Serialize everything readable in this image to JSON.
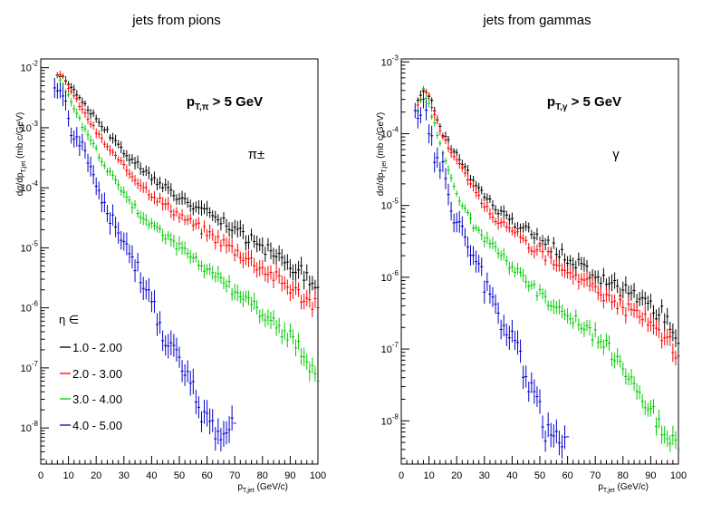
{
  "chart_data": [
    {
      "type": "scatter",
      "title": "jets from pions",
      "annotation": "p_T,π > 5 GeV",
      "particle_label": "π±",
      "xlabel": "p_T,jet (GeV/c)",
      "ylabel": "dσ/dp_T,jet (mb c/GeV)",
      "xlim": [
        0,
        100
      ],
      "ylim": [
        2.5e-09,
        0.014
      ],
      "yscale": "log",
      "x_ticks": [
        "0",
        "10",
        "20",
        "30",
        "40",
        "50",
        "60",
        "70",
        "80",
        "90",
        "100"
      ],
      "y_ticks": [
        {
          "base": "10",
          "exp": "-2",
          "value": 0.01
        },
        {
          "base": "10",
          "exp": "-3",
          "value": 0.001
        },
        {
          "base": "10",
          "exp": "-4",
          "value": 0.0001
        },
        {
          "base": "10",
          "exp": "-5",
          "value": 1e-05
        },
        {
          "base": "10",
          "exp": "-6",
          "value": 1e-06
        },
        {
          "base": "10",
          "exp": "-7",
          "value": 1e-07
        },
        {
          "base": "10",
          "exp": "-8",
          "value": 1e-08
        }
      ],
      "legend": {
        "header": "η ∈",
        "placement": "bottom-left",
        "entries": [
          "1.0 - 2.00",
          "2.0 - 3.00",
          "3.0 - 4.00",
          "4.0 - 5.00"
        ]
      },
      "series": [
        {
          "color": "#000000",
          "x": [
            6,
            8,
            10,
            15,
            20,
            25,
            30,
            35,
            40,
            45,
            50,
            55,
            60,
            65,
            70,
            75,
            80,
            85,
            90,
            95,
            100
          ],
          "y": [
            0.0075,
            0.0072,
            0.0055,
            0.0028,
            0.0014,
            0.00075,
            0.0004,
            0.00024,
            0.00015,
            0.0001,
            7e-05,
            5e-05,
            3.7e-05,
            2.7e-05,
            2e-05,
            1.4e-05,
            1e-05,
            7.2e-06,
            5.2e-06,
            3.8e-06,
            2.2e-06
          ]
        },
        {
          "color": "#ff0000",
          "x": [
            6,
            8,
            10,
            15,
            20,
            25,
            30,
            35,
            40,
            45,
            50,
            55,
            60,
            65,
            70,
            75,
            80,
            85,
            90,
            95,
            100
          ],
          "y": [
            0.0075,
            0.007,
            0.0048,
            0.002,
            0.00085,
            0.00042,
            0.00022,
            0.00013,
            8e-05,
            5.2e-05,
            3.6e-05,
            2.5e-05,
            1.8e-05,
            1.3e-05,
            9.2e-06,
            6.6e-06,
            4.6e-06,
            3.2e-06,
            2.2e-06,
            1.5e-06,
            1e-06
          ]
        },
        {
          "color": "#00cc00",
          "x": [
            6,
            8,
            10,
            15,
            20,
            25,
            30,
            35,
            40,
            45,
            50,
            55,
            60,
            65,
            70,
            75,
            80,
            85,
            90,
            95,
            100
          ],
          "y": [
            0.007,
            0.0055,
            0.0033,
            0.0011,
            0.00042,
            0.00017,
            8e-05,
            4e-05,
            2.3e-05,
            1.5e-05,
            1e-05,
            6.8e-06,
            4.5e-06,
            2.8e-06,
            1.9e-06,
            1.3e-06,
            8e-07,
            5e-07,
            3.2e-07,
            1.6e-07,
            6e-08
          ]
        },
        {
          "color": "#0000cc",
          "x": [
            5,
            8,
            10,
            12,
            15,
            17,
            20,
            22,
            25,
            27,
            30,
            32,
            35,
            37,
            40,
            42,
            45,
            47,
            50,
            52,
            55,
            57,
            60,
            62,
            65,
            70
          ],
          "y": [
            0.006,
            0.0035,
            0.0013,
            0.00075,
            0.00045,
            0.00022,
            0.00012,
            6.5e-05,
            3.3e-05,
            2e-05,
            1.1e-05,
            6.5e-06,
            3.8e-06,
            2.2e-06,
            1.4e-06,
            7e-07,
            3.5e-07,
            2.5e-07,
            1.2e-07,
            7e-08,
            4e-08,
            2e-08,
            1.5e-08,
            1e-08,
            8e-09,
            1.2e-08
          ]
        }
      ]
    },
    {
      "type": "scatter",
      "title": "jets from gammas",
      "annotation": "p_T,γ > 5 GeV",
      "particle_label": "γ",
      "xlabel": "p_T,jet (GeV/c)",
      "ylabel": "dσ/dp_T,jet (mb c/GeV)",
      "xlim": [
        0,
        100
      ],
      "ylim": [
        2.5e-09,
        0.0011
      ],
      "yscale": "log",
      "x_ticks": [
        "0",
        "10",
        "20",
        "30",
        "40",
        "50",
        "60",
        "70",
        "80",
        "90",
        "100"
      ],
      "y_ticks": [
        {
          "base": "10",
          "exp": "-3",
          "value": 0.001
        },
        {
          "base": "10",
          "exp": "-4",
          "value": 0.0001
        },
        {
          "base": "10",
          "exp": "-5",
          "value": 1e-05
        },
        {
          "base": "10",
          "exp": "-6",
          "value": 1e-06
        },
        {
          "base": "10",
          "exp": "-7",
          "value": 1e-07
        },
        {
          "base": "10",
          "exp": "-8",
          "value": 1e-08
        }
      ],
      "series": [
        {
          "color": "#000000",
          "x": [
            6,
            8,
            10,
            15,
            20,
            25,
            30,
            35,
            40,
            45,
            50,
            55,
            60,
            65,
            70,
            75,
            80,
            85,
            90,
            95,
            100
          ],
          "y": [
            0.0003,
            0.0004,
            0.00035,
            0.0001,
            5e-05,
            2.5e-05,
            1.3e-05,
            8.5e-06,
            6e-06,
            4.5e-06,
            3.3e-06,
            2.5e-06,
            1.9e-06,
            1.4e-06,
            1.1e-06,
            8.5e-07,
            6.5e-07,
            5e-07,
            4e-07,
            2.8e-07,
            1.2e-07
          ]
        },
        {
          "color": "#ff0000",
          "x": [
            6,
            8,
            10,
            15,
            20,
            25,
            30,
            35,
            40,
            45,
            50,
            55,
            60,
            65,
            70,
            75,
            80,
            85,
            90,
            95,
            100
          ],
          "y": [
            0.00025,
            0.0004,
            0.00032,
            9e-05,
            4.2e-05,
            2e-05,
            1e-05,
            6e-06,
            4.2e-06,
            3.1e-06,
            2.3e-06,
            1.7e-06,
            1.3e-06,
            9.5e-07,
            7e-07,
            5.2e-07,
            4e-07,
            3e-07,
            2.2e-07,
            1.5e-07,
            8e-08
          ]
        },
        {
          "color": "#00cc00",
          "x": [
            6,
            8,
            10,
            15,
            20,
            25,
            30,
            35,
            40,
            45,
            50,
            55,
            60,
            65,
            70,
            75,
            80,
            85,
            90,
            95,
            100
          ],
          "y": [
            0.0002,
            0.0004,
            0.00025,
            5e-05,
            1.5e-05,
            6e-06,
            3.5e-06,
            2.2e-06,
            1.4e-06,
            9e-07,
            6e-07,
            4.2e-07,
            3e-07,
            2.2e-07,
            1.5e-07,
            1e-07,
            6e-08,
            3e-08,
            1.5e-08,
            6e-09,
            4e-09
          ]
        },
        {
          "color": "#0000cc",
          "x": [
            5,
            8,
            10,
            12,
            15,
            17,
            20,
            22,
            25,
            27,
            30,
            32,
            35,
            37,
            40,
            42,
            45,
            47,
            50,
            52,
            55,
            57,
            60
          ],
          "y": [
            0.00015,
            0.00025,
            0.00012,
            5e-05,
            3e-05,
            1.2e-05,
            6.5e-06,
            4.2e-06,
            2.5e-06,
            1.4e-06,
            9e-07,
            5e-07,
            3.5e-07,
            2.2e-07,
            1.4e-07,
            8e-08,
            5e-08,
            3e-08,
            1.5e-08,
            8e-09,
            6e-09,
            4e-09,
            6e-09
          ]
        }
      ]
    }
  ]
}
